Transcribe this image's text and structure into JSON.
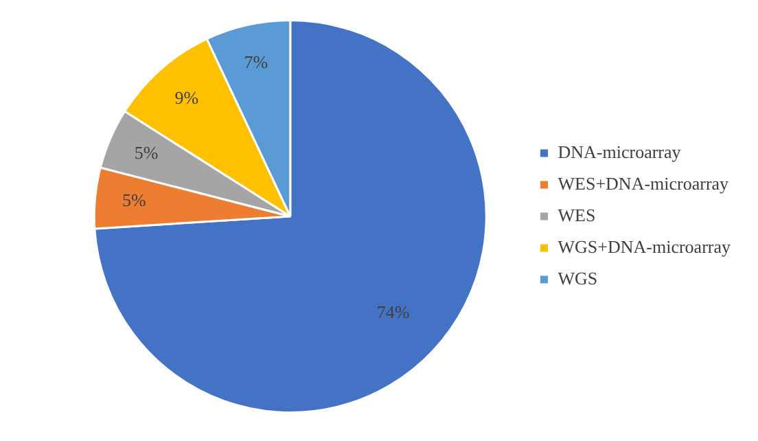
{
  "chart_data": {
    "type": "pie",
    "categories": [
      "DNA-microarray",
      "WES+DNA-microarray",
      "WES",
      "WGS+DNA-microarray",
      "WGS"
    ],
    "values": [
      74,
      5,
      5,
      9,
      7
    ],
    "colors": [
      "#4472c4",
      "#ed7d31",
      "#a5a5a5",
      "#ffc000",
      "#5b9bd5"
    ],
    "value_labels": [
      "74%",
      "5%",
      "5%",
      "9%",
      "7%"
    ],
    "legend": "right"
  }
}
